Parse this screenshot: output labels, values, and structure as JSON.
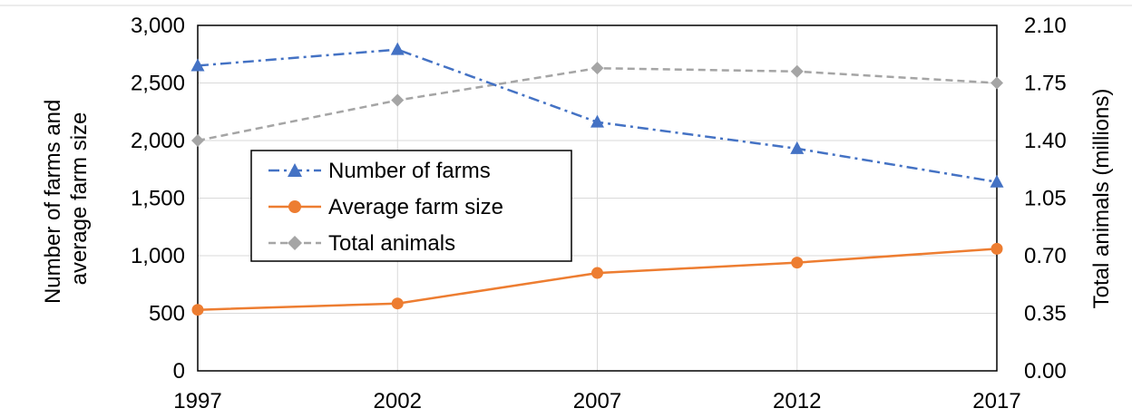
{
  "chart_data": {
    "type": "line",
    "x": [
      "1997",
      "2002",
      "2007",
      "2012",
      "2017"
    ],
    "series": [
      {
        "name": "Number of farms",
        "axis": "left",
        "color": "#4472C4",
        "line_style": "dash-dot",
        "marker": "triangle",
        "values": [
          2650,
          2790,
          2160,
          1930,
          1640
        ]
      },
      {
        "name": "Average farm size",
        "axis": "left",
        "color": "#ED7D31",
        "line_style": "solid",
        "marker": "circle",
        "values": [
          530,
          585,
          850,
          940,
          1060
        ]
      },
      {
        "name": "Total animals",
        "axis": "right",
        "color": "#A5A5A5",
        "line_style": "dashed",
        "marker": "diamond",
        "values": [
          1.4,
          1.645,
          1.84,
          1.82,
          1.75
        ]
      }
    ],
    "ylabel_left": [
      "Number of farms and",
      "average farm size"
    ],
    "ylabel_right": "Total animals (millions)",
    "y_left_ticks": [
      "0",
      "500",
      "1,000",
      "1,500",
      "2,000",
      "2,500",
      "3,000"
    ],
    "y_right_ticks": [
      "0.00",
      "0.35",
      "0.70",
      "1.05",
      "1.40",
      "1.75",
      "2.10"
    ],
    "ylim_left": [
      0,
      3000
    ],
    "ylim_right": [
      0,
      2.1
    ],
    "grid": true,
    "legend_position": "center-left"
  }
}
